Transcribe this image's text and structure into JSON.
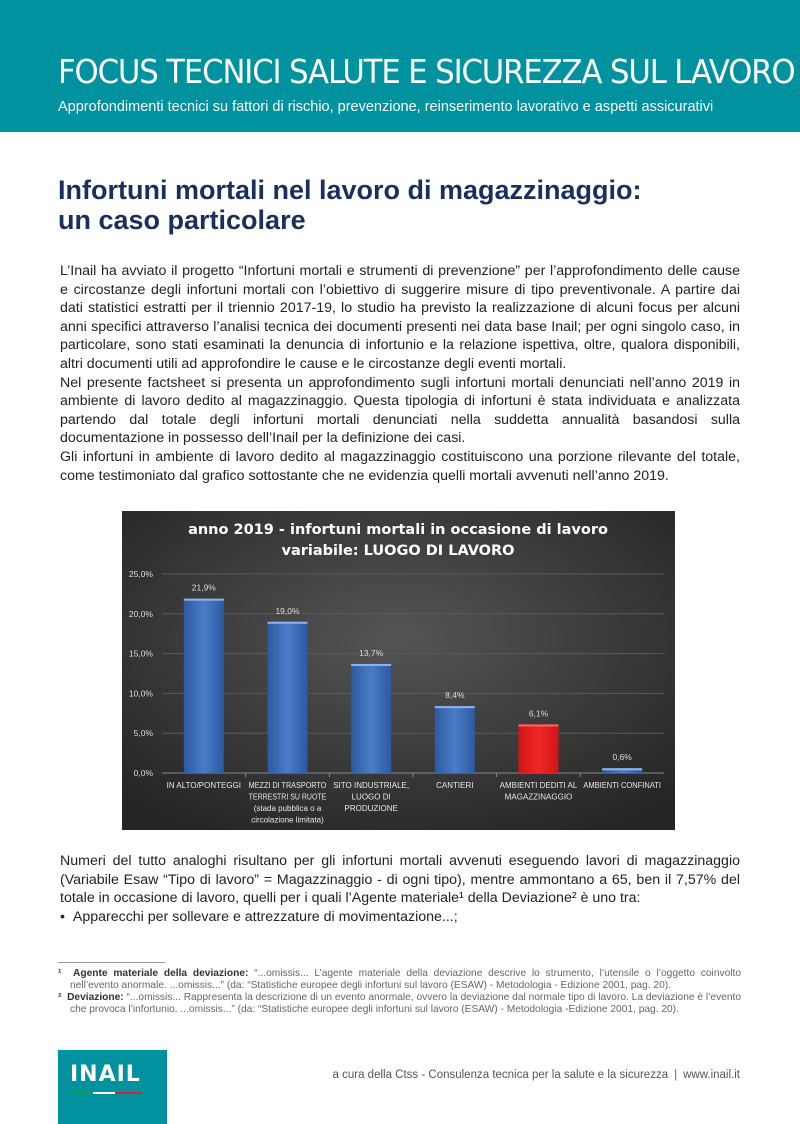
{
  "header": {
    "title": "FOCUS TECNICI SALUTE E SICUREZZA SUL LAVORO",
    "subtitle": "Approfondimenti tecnici su fattori di rischio, prevenzione, reinserimento lavorativo e aspetti assicurativi"
  },
  "article": {
    "title_line1": "Infortuni mortali nel lavoro di magazzinaggio:",
    "title_line2": "un caso particolare",
    "p1": "L’Inail ha avviato il progetto “Infortuni mortali e strumenti di prevenzione” per l’approfondimento delle cause e circostanze degli infortuni mortali con l’obiettivo di suggerire misure di tipo preventivo­nale. A partire dai dati statistici estratti per il triennio 2017-19, lo studio ha previsto la realizzazione di alcuni focus per alcuni anni specifici attraverso l’analisi tecnica dei documenti presenti nei data base Inail; per ogni singolo caso, in particolare, sono stati esaminati la denuncia di infortunio e la relazione ispettiva, oltre, qualora disponibili, altri documenti utili ad approfondire le cause e le circostanze degli eventi mortali.",
    "p2": "Nel presente factsheet si presenta un approfondimento sugli infortuni mortali denunciati nell’anno 2019 in ambiente di lavoro dedito al magazzinaggio. Questa tipologia di infortuni è stata individuata e analizzata partendo dal totale degli infortuni mortali denunciati nella suddetta annualità basandosi sulla documentazione in possesso dell’Inail per la definizione dei casi.",
    "p3": "Gli infortuni in ambiente di lavoro dedito al magazzinaggio costituiscono una porzione rilevante del totale, come testimoniato dal grafico sottostante che ne evidenzia quelli mortali avvenuti nell’anno 2019.",
    "p4": "Numeri del tutto analoghi risultano per gli infortuni mortali avvenuti eseguendo lavori di magazzinaggio (Variabile Esaw “Tipo di lavoro” = Magazzinaggio - di ogni tipo), mentre ammontano a 65, ben il 7,57% del totale in occasione di lavoro, quelli per i quali l’Agente materiale¹ della Deviazione² è uno tra:",
    "bullet1": "Apparecchi per sollevare e attrezzature di movimentazione...;"
  },
  "chart_data": {
    "type": "bar",
    "title_line1": "anno 2019 - infortuni mortali in occasione di lavoro",
    "title_line2": "variabile: LUOGO DI LAVORO",
    "categories": [
      [
        "IN ALTO/PONTEGGI"
      ],
      [
        "MEZZI DI TRASPORTO",
        "TERRESTRI SU RUOTE",
        "(stada pubblica o a",
        "circolazione limitata)"
      ],
      [
        "SITO INDUSTRIALE,",
        "LUOGO DI",
        "PRODUZIONE"
      ],
      [
        "CANTIERI"
      ],
      [
        "AMBIENTI DEDITI AL",
        "MAGAZZINAGGIO"
      ],
      [
        "AMBIENTI CONFINATI"
      ]
    ],
    "values": [
      21.9,
      19.0,
      13.7,
      8.4,
      6.1,
      0.6
    ],
    "data_labels": [
      "21,9%",
      "19,0%",
      "13,7%",
      "8,4%",
      "6,1%",
      "0,6%"
    ],
    "yticks": [
      "0,0%",
      "5,0%",
      "10,0%",
      "15,0%",
      "20,0%",
      "25,0%"
    ],
    "ylim": [
      0,
      25
    ],
    "grid": true,
    "colors": {
      "default": "#3f6fb8",
      "highlight": "#e8201f",
      "background": "#3a3a3a"
    },
    "highlight_index": 4
  },
  "footnotes": [
    {
      "mark": "¹",
      "term": "Agente materiale della deviazione:",
      "text": " “...omissis... L’agente materiale della deviazione descrive lo strumento, l’utensile o l’oggetto coinvolto nell’evento anormale. ...omissis...” (da: “Statistiche europee degli infortuni sul lavoro (ESAW) - Metodologia - Edizione 2001, pag. 20)."
    },
    {
      "mark": "²",
      "term": "Deviazione:",
      "text": " “...omissis... Rappresenta la descrizione di un evento anormale, ovvero la deviazione dal normale tipo di lavoro. La deviazione è l’evento che provoca l’infortunio. ...omissis...” (da: “Statistiche europee degli infortuni sul lavoro (ESAW) - Metodologia -Edizione 2001, pag. 20)."
    }
  ],
  "footer": {
    "logo": "INAIL",
    "credit": "a cura della Ctss - Consulenza tecnica per la salute e la sicurezza",
    "separator": "|",
    "url": "www.inail.it"
  }
}
